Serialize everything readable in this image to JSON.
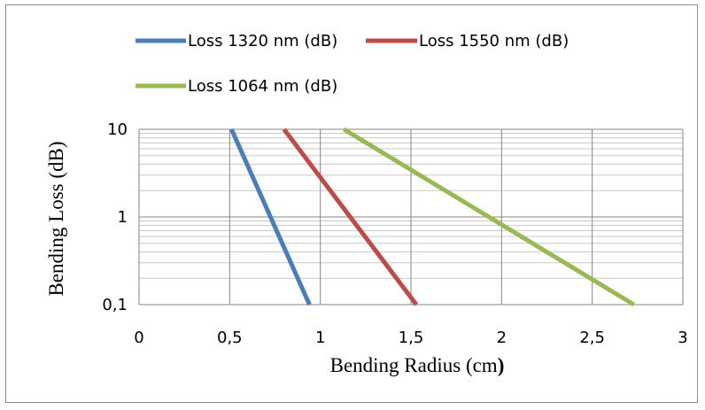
{
  "chart_data": {
    "type": "line",
    "xlabel": "Bending Radius (cm",
    "xlabel_suffix": ")",
    "ylabel": "Bending Loss (dB)",
    "xlim": [
      0,
      3
    ],
    "ylim": [
      0.1,
      10
    ],
    "yscale": "log",
    "grid": true,
    "legend_position": "top",
    "x_ticks": [
      0,
      0.5,
      1,
      1.5,
      2,
      2.5,
      3
    ],
    "x_tick_labels": [
      "0",
      "0,5",
      "1",
      "1,5",
      "2",
      "2,5",
      "3"
    ],
    "y_ticks": [
      0.1,
      1,
      10
    ],
    "y_tick_labels": [
      "0,1",
      "1",
      "10"
    ],
    "series": [
      {
        "name": "Loss 1320 nm (dB)",
        "color": "#4a7ebb",
        "x": [
          0.51,
          0.94
        ],
        "y": [
          10,
          0.1
        ]
      },
      {
        "name": "Loss 1550 nm (dB)",
        "color": "#be4b48",
        "x": [
          0.8,
          1.53
        ],
        "y": [
          10,
          0.1
        ]
      },
      {
        "name": "Loss 1064 nm (dB)",
        "color": "#98b954",
        "x": [
          1.13,
          2.73
        ],
        "y": [
          10,
          0.1
        ]
      }
    ]
  }
}
